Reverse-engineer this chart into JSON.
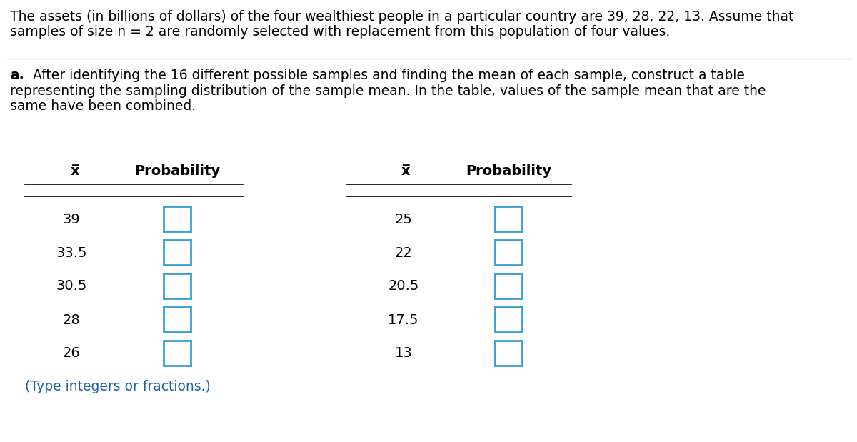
{
  "header_line1": "The assets (in billions of dollars) of the four wealthiest people in a particular country are 39, 28, 22, 13. Assume that",
  "header_line2": "samples of size n = 2 are randomly selected with replacement from this population of four values.",
  "sub_bold": "a.",
  "sub_rest_line1": " After identifying the 16 different possible samples and finding the mean of each sample, construct a table",
  "sub_rest_line2": "representing the sampling distribution of the sample mean. In the table, values of the sample mean that are the",
  "sub_rest_line3": "same have been combined.",
  "footer_text": "(Type integers or fractions.)",
  "col1_xbar": [
    "39",
    "33.5",
    "30.5",
    "28",
    "26"
  ],
  "col2_xbar": [
    "25",
    "22",
    "20.5",
    "17.5",
    "13"
  ],
  "col_header_xbar": "x̅",
  "col_header_prob": "Probability",
  "box_color": "#3a9fd4",
  "box_fill": "#ffffff",
  "text_color": "#000000",
  "footer_color": "#1a5fa8",
  "bg_color": "#ffffff",
  "font_size_header": 13.5,
  "font_size_table": 14,
  "font_size_footer": 13.5
}
